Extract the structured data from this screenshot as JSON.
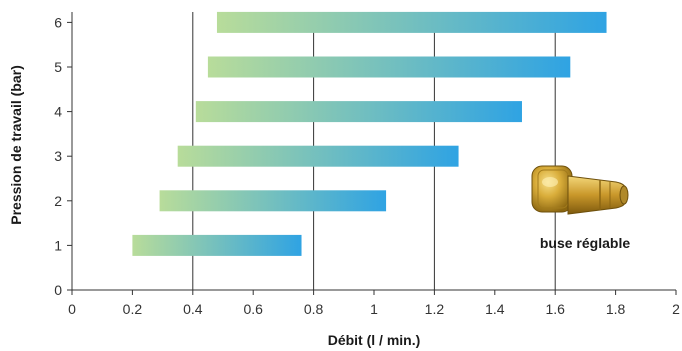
{
  "chart_data": {
    "type": "bar",
    "orientation": "horizontal-range",
    "title": "",
    "xlabel": "Débit (l / min.)",
    "ylabel": "Pression de travail (bar)",
    "xlim": [
      0,
      2
    ],
    "ylim": [
      0,
      6.5
    ],
    "xticks": [
      "0",
      "0.2",
      "0.4",
      "0.6",
      "0.8",
      "1",
      "1.2",
      "1.4",
      "1.6",
      "1.8",
      "2"
    ],
    "yticks": [
      "0",
      "1",
      "2",
      "3",
      "4",
      "5",
      "6"
    ],
    "gridlines_x": [
      0.4,
      0.8,
      1.2,
      1.6
    ],
    "bars": [
      {
        "pressure": 1,
        "min": 0.2,
        "max": 0.76
      },
      {
        "pressure": 2,
        "min": 0.29,
        "max": 1.04
      },
      {
        "pressure": 3,
        "min": 0.35,
        "max": 1.28
      },
      {
        "pressure": 4,
        "min": 0.41,
        "max": 1.49
      },
      {
        "pressure": 5,
        "min": 0.45,
        "max": 1.65
      },
      {
        "pressure": 6,
        "min": 0.48,
        "max": 1.77
      }
    ],
    "gradient_colors": [
      "#b8dc9a",
      "#2fa3e3"
    ],
    "annotation": "buse réglable",
    "annotation_image": "brass-adjustable-nozzle"
  }
}
